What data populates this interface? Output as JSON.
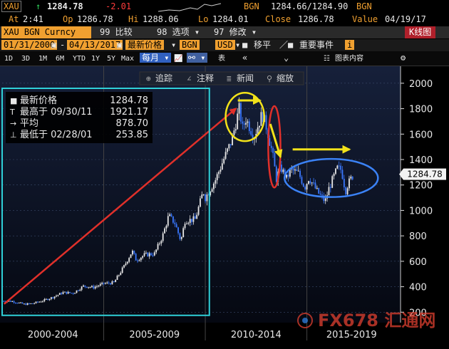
{
  "header": {
    "ticker": "XAU",
    "last": "1284.78",
    "change": "-2.01",
    "source": "BGN",
    "bid_ask": "1284.66/1284.90",
    "source2": "BGN",
    "at_label": "At",
    "time": "2:41",
    "op_label": "Op",
    "open": "1286.78",
    "hi_label": "Hi",
    "high": "1288.06",
    "lo_label": "Lo",
    "low": "1284.01",
    "close_label": "Close",
    "close": "1286.78",
    "value_label": "Value",
    "value_date": "04/19/17"
  },
  "toolbar": {
    "security": "XAU BGN Curncy",
    "compare": "99 比较",
    "options": "98 选项 ▾",
    "edit": "97 修改 ▾",
    "chart_type": "K线图",
    "date_from": "01/31/2000",
    "date_to": "04/13/2017",
    "field": "最新价格",
    "field_src": "BGN",
    "currency": "USD",
    "shift": "移平",
    "events": "重要事件",
    "periods": [
      "1D",
      "3D",
      "1M",
      "6M",
      "YTD",
      "1Y",
      "5Y",
      "Max"
    ],
    "frequency": "每月 ▾",
    "table": "表",
    "track": "追踪",
    "annotate": "注释",
    "news": "新闻",
    "zoom": "缩放",
    "chart_content": "图表内容"
  },
  "legend": {
    "items": [
      {
        "label": "最新价格",
        "value": "1284.78"
      },
      {
        "label": "最高于 09/30/11",
        "value": "1921.17"
      },
      {
        "label": "平均",
        "value": "878.70"
      },
      {
        "label": "最低于 02/28/01",
        "value": "253.85"
      }
    ]
  },
  "watermark": "FX678 汇通网",
  "colors": {
    "up": "#e8e8e8",
    "down": "#3a78ff",
    "annotation_red": "#e0302a",
    "annotation_yellow": "#f2e21a",
    "annotation_blue": "#3b82f6",
    "annotation_cyan": "#2fd0d8",
    "orange": "#f0a030"
  },
  "chart_data": {
    "type": "candlestick",
    "frequency": "monthly",
    "y_ticks": [
      200,
      400,
      600,
      800,
      1000,
      1200,
      1400,
      1600,
      1800,
      2000
    ],
    "ylim": [
      140,
      2100
    ],
    "xlim": [
      2000.0,
      2019.4
    ],
    "x_labels": [
      {
        "text": "2000-2004",
        "from": 2000.0,
        "to": 2005.0
      },
      {
        "text": "2005-2009",
        "from": 2005.0,
        "to": 2010.0
      },
      {
        "text": "2010-2014",
        "from": 2010.0,
        "to": 2015.0
      },
      {
        "text": "2015-2019",
        "from": 2015.0,
        "to": 2019.4
      }
    ],
    "current_label": "1284.78",
    "current_value": 1284.78,
    "anchors": [
      [
        2000.0,
        288
      ],
      [
        2000.5,
        285
      ],
      [
        2001.1,
        262
      ],
      [
        2001.5,
        268
      ],
      [
        2002.0,
        290
      ],
      [
        2002.5,
        318
      ],
      [
        2003.0,
        355
      ],
      [
        2003.5,
        350
      ],
      [
        2004.0,
        405
      ],
      [
        2004.5,
        395
      ],
      [
        2005.0,
        425
      ],
      [
        2005.5,
        432
      ],
      [
        2006.0,
        560
      ],
      [
        2006.4,
        680
      ],
      [
        2006.6,
        610
      ],
      [
        2007.0,
        650
      ],
      [
        2007.5,
        660
      ],
      [
        2007.9,
        800
      ],
      [
        2008.2,
        960
      ],
      [
        2008.5,
        900
      ],
      [
        2008.8,
        760
      ],
      [
        2009.0,
        920
      ],
      [
        2009.5,
        930
      ],
      [
        2009.9,
        1150
      ],
      [
        2010.0,
        1100
      ],
      [
        2010.5,
        1240
      ],
      [
        2010.9,
        1400
      ],
      [
        2011.3,
        1550
      ],
      [
        2011.7,
        1820
      ],
      [
        2011.8,
        1630
      ],
      [
        2012.0,
        1720
      ],
      [
        2012.4,
        1580
      ],
      [
        2012.8,
        1760
      ],
      [
        2013.0,
        1660
      ],
      [
        2013.3,
        1450
      ],
      [
        2013.5,
        1250
      ],
      [
        2013.7,
        1340
      ],
      [
        2014.0,
        1250
      ],
      [
        2014.2,
        1320
      ],
      [
        2014.6,
        1290
      ],
      [
        2014.9,
        1180
      ],
      [
        2015.1,
        1260
      ],
      [
        2015.5,
        1150
      ],
      [
        2015.9,
        1070
      ],
      [
        2016.1,
        1180
      ],
      [
        2016.5,
        1330
      ],
      [
        2016.7,
        1320
      ],
      [
        2016.9,
        1150
      ],
      [
        2017.0,
        1200
      ],
      [
        2017.3,
        1285
      ]
    ]
  },
  "annotations": [
    {
      "type": "arrow",
      "color": "red",
      "from": [
        2000.1,
        265
      ],
      "to": [
        2011.5,
        1800
      ]
    },
    {
      "type": "box",
      "color": "cyan",
      "x": [
        2000.0,
        2010.2
      ],
      "y": [
        175,
        1960
      ]
    },
    {
      "type": "ellipse",
      "color": "yellow",
      "center": [
        2011.95,
        1735
      ],
      "rx_years": 0.95,
      "ry_value": 190
    },
    {
      "type": "arrow",
      "color": "yellow",
      "from": [
        2011.6,
        1865
      ],
      "to": [
        2012.7,
        1865
      ]
    },
    {
      "type": "ellipse",
      "color": "red",
      "center": [
        2013.4,
        1500
      ],
      "rx_years": 0.3,
      "ry_value": 320
    },
    {
      "type": "arrow",
      "color": "yellow",
      "from": [
        2013.2,
        1680
      ],
      "to": [
        2013.7,
        1420
      ]
    },
    {
      "type": "ellipse",
      "color": "blue",
      "center": [
        2016.2,
        1255
      ],
      "rx_years": 2.3,
      "ry_value": 150
    },
    {
      "type": "arrow",
      "color": "yellow",
      "from": [
        2014.3,
        1480
      ],
      "to": [
        2017.1,
        1480
      ]
    }
  ]
}
